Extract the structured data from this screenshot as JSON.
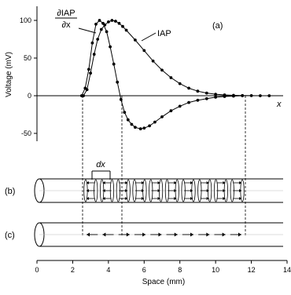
{
  "panel_a": {
    "panel_label": "(a)",
    "ylabel": "Voltage (mV)",
    "x_axis_symbol": "x",
    "y_ticks": [
      "100",
      "50",
      "0",
      "-50"
    ],
    "curve_labels": {
      "derivative_top": "∂IAP",
      "derivative_bottom": "∂x",
      "iap": "IAP"
    }
  },
  "panel_b": {
    "panel_label": "(b)",
    "dx_label": "dx"
  },
  "panel_c": {
    "panel_label": "(c)"
  },
  "x_axis": {
    "title": "Space (mm)",
    "ticks": [
      "0",
      "2",
      "4",
      "6",
      "8",
      "10",
      "12",
      "14"
    ]
  },
  "chart_data": {
    "type": "line",
    "xlabel": "Space (mm)",
    "ylabel": "Voltage (mV)",
    "xlim": [
      0,
      14
    ],
    "ylim": [
      -60,
      110
    ],
    "series": [
      {
        "name": "IAP",
        "x": [
          2.6,
          2.8,
          3.0,
          3.2,
          3.4,
          3.6,
          3.8,
          4.0,
          4.2,
          4.4,
          4.6,
          4.8,
          5.0,
          5.5,
          6.0,
          6.5,
          7.0,
          7.5,
          8.0,
          8.5,
          9.0,
          9.5,
          10.0,
          10.5,
          11.0,
          11.5,
          12.0,
          12.5,
          13.0
        ],
        "y": [
          0,
          8,
          30,
          55,
          75,
          88,
          94,
          98,
          100,
          99,
          96,
          92,
          87,
          74,
          60,
          46,
          34,
          24,
          16,
          10,
          6,
          3.5,
          2,
          1,
          0.5,
          0.2,
          0.1,
          0,
          0
        ]
      },
      {
        "name": "∂IAP/∂x",
        "x": [
          2.5,
          2.7,
          2.9,
          3.1,
          3.3,
          3.5,
          3.7,
          3.9,
          4.1,
          4.3,
          4.5,
          4.7,
          4.9,
          5.1,
          5.3,
          5.5,
          5.8,
          6.0,
          6.3,
          6.6,
          7.0,
          7.5,
          8.0,
          8.5,
          9.0,
          9.5,
          10.0,
          10.5,
          11.0,
          11.5
        ],
        "y": [
          0,
          10,
          35,
          70,
          95,
          100,
          96,
          85,
          65,
          42,
          18,
          -5,
          -22,
          -32,
          -38,
          -42,
          -44,
          -43,
          -40,
          -35,
          -28,
          -20,
          -14,
          -9,
          -6,
          -4,
          -2,
          -1,
          -0.5,
          0
        ]
      }
    ]
  }
}
